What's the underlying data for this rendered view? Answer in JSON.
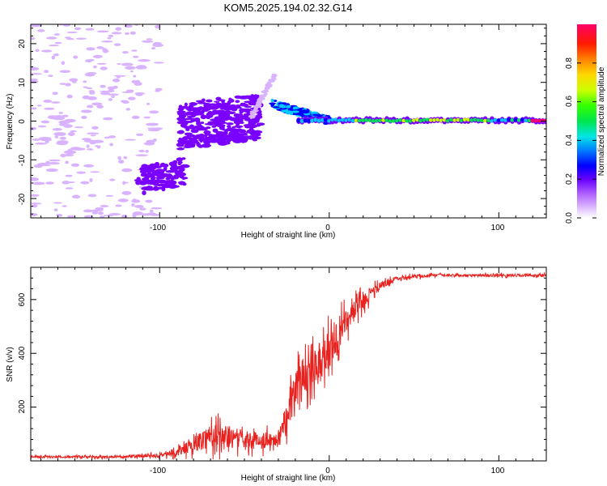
{
  "chart_data": [
    {
      "type": "heatmap",
      "title": "KOM5.2025.194.02.32.G14",
      "xlabel": "Height of straight line (km)",
      "ylabel": "Frequency (Hz)",
      "xlim": [
        -176,
        128
      ],
      "ylim": [
        -25,
        25
      ],
      "xticks": [
        "-100",
        "0",
        "100"
      ],
      "yticks": [
        "-20",
        "-10",
        "0",
        "10",
        "20"
      ],
      "grid": false,
      "colorbar": {
        "label": "Normalized spectral amplitude",
        "range": [
          0,
          1
        ],
        "ticks": [
          "0.0",
          "0.2",
          "0.4",
          "0.6",
          "0.8"
        ],
        "colormap": [
          "#ffffff",
          "#d9b3ff",
          "#7a00ff",
          "#0000ff",
          "#00c8ff",
          "#00e64d",
          "#ccff00",
          "#ffd700",
          "#ff3300",
          "#ff0066"
        ]
      },
      "features": [
        {
          "region": "scattered noise",
          "x_range": [
            -176,
            -110
          ],
          "freq_range": [
            -25,
            25
          ],
          "amplitude": 0.08
        },
        {
          "region": "patch",
          "x_range": [
            -113,
            -85
          ],
          "freq_range": [
            -19,
            -12
          ],
          "amplitude": 0.18
        },
        {
          "region": "broad band",
          "x_range": [
            -88,
            -40
          ],
          "freq_range": [
            -6,
            6
          ],
          "amplitude": 0.15
        },
        {
          "region": "rising trace",
          "x_range": [
            -45,
            -30
          ],
          "freq_range": [
            2,
            12
          ],
          "amplitude": 0.12
        },
        {
          "region": "converging trace",
          "x_range": [
            -35,
            0
          ],
          "freq_range": [
            -2,
            5
          ],
          "amplitude": 0.25
        },
        {
          "region": "carrier line",
          "x_range": [
            0,
            128
          ],
          "freq_range": [
            -1,
            1
          ],
          "amplitude": 0.6
        }
      ]
    },
    {
      "type": "line",
      "xlabel": "Height of straight line (km)",
      "ylabel": "SNR (v/v)",
      "xlim": [
        -176,
        128
      ],
      "ylim": [
        0,
        720
      ],
      "xticks": [
        "-100",
        "0",
        "100"
      ],
      "yticks": [
        "200",
        "400",
        "600"
      ],
      "grid": false,
      "series": [
        {
          "color": "#e8221f",
          "x": [
            -176,
            -150,
            -120,
            -100,
            -90,
            -80,
            -70,
            -60,
            -50,
            -40,
            -30,
            -25,
            -20,
            -15,
            -10,
            -5,
            0,
            5,
            10,
            20,
            30,
            40,
            60,
            80,
            100,
            128
          ],
          "mean": [
            15,
            15,
            15,
            20,
            30,
            60,
            95,
            90,
            80,
            75,
            85,
            180,
            260,
            320,
            360,
            380,
            420,
            450,
            520,
            600,
            650,
            680,
            690,
            690,
            690,
            690
          ],
          "noise": [
            8,
            8,
            8,
            15,
            25,
            55,
            90,
            85,
            65,
            60,
            55,
            120,
            140,
            150,
            160,
            150,
            140,
            130,
            90,
            60,
            30,
            15,
            10,
            10,
            10,
            10
          ]
        }
      ]
    }
  ]
}
